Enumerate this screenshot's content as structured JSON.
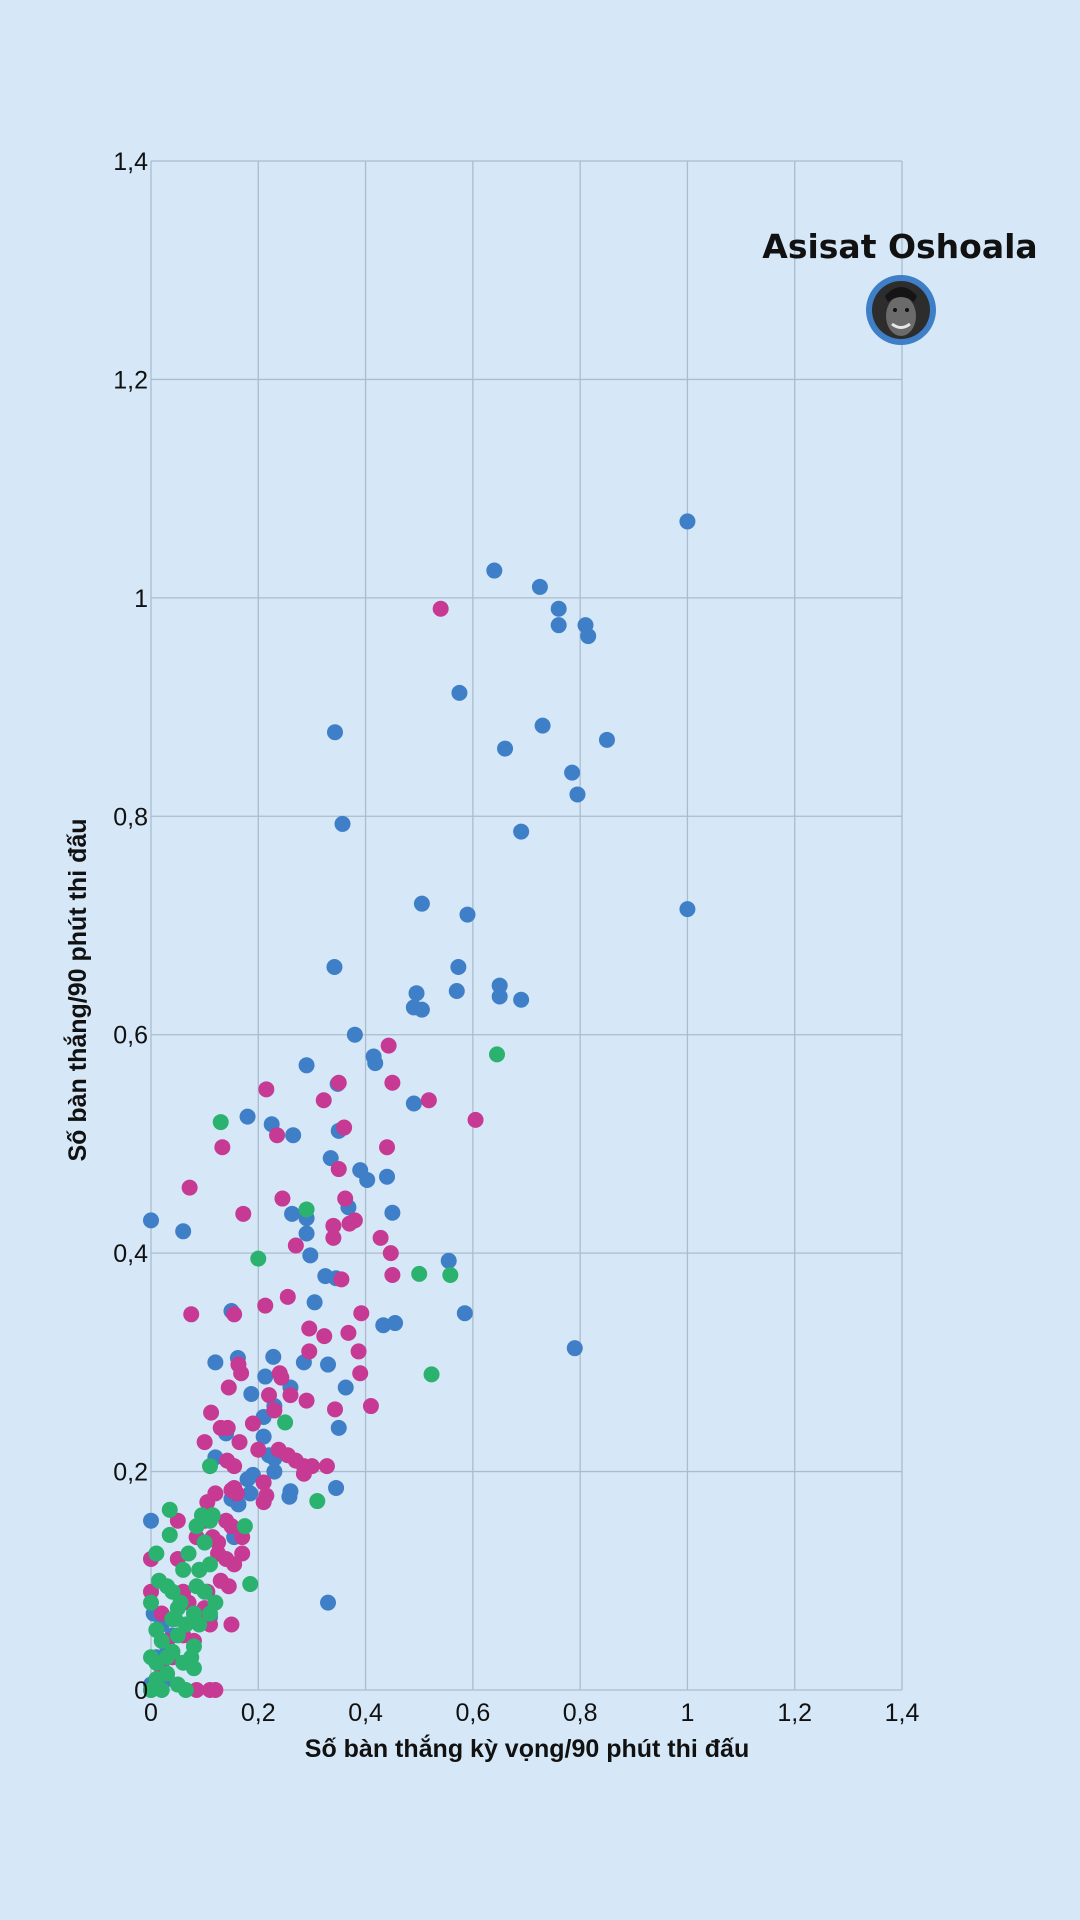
{
  "chart_data": {
    "type": "scatter",
    "xlabel": "Số bàn thắng kỳ vọng/90 phút thi đấu",
    "ylabel": "Số bàn thắng/90 phút thi đấu",
    "xlim": [
      0,
      1.4
    ],
    "ylim": [
      0,
      1.4
    ],
    "x_ticks": [
      0,
      0.2,
      0.4,
      0.6,
      0.8,
      1,
      1.2,
      1.4
    ],
    "y_ticks": [
      0,
      0.2,
      0.4,
      0.6,
      0.8,
      1,
      1.2,
      1.4
    ],
    "x_tick_labels": [
      "0",
      "0,2",
      "0,4",
      "0,6",
      "0,8",
      "1",
      "1,2",
      "1,4"
    ],
    "y_tick_labels": [
      "0",
      "0,2",
      "0,4",
      "0,6",
      "0,8",
      "1",
      "1,2",
      "1,4"
    ],
    "grid": true,
    "legend": "none",
    "annotation": {
      "label": "Asisat Oshoala",
      "x": 1.4,
      "y": 1.26,
      "marker": "player-photo"
    },
    "series": [
      {
        "color": "#3f7fc7",
        "points": [
          [
            1.0,
            1.07
          ],
          [
            0.64,
            1.025
          ],
          [
            0.725,
            1.01
          ],
          [
            0.76,
            0.99
          ],
          [
            0.76,
            0.975
          ],
          [
            0.81,
            0.975
          ],
          [
            0.815,
            0.965
          ],
          [
            0.575,
            0.913
          ],
          [
            0.73,
            0.883
          ],
          [
            0.343,
            0.877
          ],
          [
            0.66,
            0.862
          ],
          [
            0.85,
            0.87
          ],
          [
            0.785,
            0.84
          ],
          [
            0.795,
            0.82
          ],
          [
            0.357,
            0.793
          ],
          [
            0.69,
            0.786
          ],
          [
            0.505,
            0.72
          ],
          [
            0.59,
            0.71
          ],
          [
            1.0,
            0.715
          ],
          [
            0.342,
            0.662
          ],
          [
            0.573,
            0.662
          ],
          [
            0.65,
            0.645
          ],
          [
            0.495,
            0.638
          ],
          [
            0.57,
            0.64
          ],
          [
            0.65,
            0.635
          ],
          [
            0.69,
            0.632
          ],
          [
            0.49,
            0.625
          ],
          [
            0.505,
            0.623
          ],
          [
            0.38,
            0.6
          ],
          [
            0.415,
            0.58
          ],
          [
            0.418,
            0.574
          ],
          [
            0.29,
            0.572
          ],
          [
            0.348,
            0.555
          ],
          [
            0.49,
            0.537
          ],
          [
            0.18,
            0.525
          ],
          [
            0.225,
            0.518
          ],
          [
            0.35,
            0.512
          ],
          [
            0.265,
            0.508
          ],
          [
            0.335,
            0.487
          ],
          [
            0.39,
            0.476
          ],
          [
            0.368,
            0.442
          ],
          [
            0.403,
            0.467
          ],
          [
            0.44,
            0.47
          ],
          [
            0.263,
            0.436
          ],
          [
            0.29,
            0.432
          ],
          [
            0.45,
            0.437
          ],
          [
            0.0,
            0.43
          ],
          [
            0.06,
            0.42
          ],
          [
            0.29,
            0.418
          ],
          [
            0.297,
            0.398
          ],
          [
            0.555,
            0.393
          ],
          [
            0.325,
            0.379
          ],
          [
            0.345,
            0.377
          ],
          [
            0.305,
            0.355
          ],
          [
            0.15,
            0.347
          ],
          [
            0.585,
            0.345
          ],
          [
            0.455,
            0.336
          ],
          [
            0.433,
            0.334
          ],
          [
            0.79,
            0.313
          ],
          [
            0.228,
            0.305
          ],
          [
            0.162,
            0.304
          ],
          [
            0.12,
            0.3
          ],
          [
            0.33,
            0.298
          ],
          [
            0.285,
            0.3
          ],
          [
            0.213,
            0.287
          ],
          [
            0.363,
            0.277
          ],
          [
            0.26,
            0.277
          ],
          [
            0.187,
            0.271
          ],
          [
            0.23,
            0.26
          ],
          [
            0.21,
            0.25
          ],
          [
            0.35,
            0.24
          ],
          [
            0.14,
            0.235
          ],
          [
            0.21,
            0.232
          ],
          [
            0.12,
            0.213
          ],
          [
            0.23,
            0.212
          ],
          [
            0.22,
            0.215
          ],
          [
            0.23,
            0.2
          ],
          [
            0.19,
            0.197
          ],
          [
            0.18,
            0.193
          ],
          [
            0.26,
            0.182
          ],
          [
            0.345,
            0.185
          ],
          [
            0.185,
            0.18
          ],
          [
            0.258,
            0.177
          ],
          [
            0.15,
            0.175
          ],
          [
            0.163,
            0.17
          ],
          [
            0.155,
            0.14
          ],
          [
            0.0,
            0.155
          ],
          [
            0.33,
            0.08
          ],
          [
            0.11,
            0.067
          ],
          [
            0.005,
            0.07
          ],
          [
            0.02,
            0.06
          ],
          [
            0.03,
            0.04
          ],
          [
            0.01,
            0.03
          ],
          [
            0.02,
            0.02
          ],
          [
            0.03,
            0.01
          ],
          [
            0.0,
            0.005
          ],
          [
            0.04,
            0.05
          ]
        ]
      },
      {
        "color": "#c63a93",
        "points": [
          [
            0.54,
            0.99
          ],
          [
            0.443,
            0.59
          ],
          [
            0.215,
            0.55
          ],
          [
            0.35,
            0.556
          ],
          [
            0.45,
            0.556
          ],
          [
            0.322,
            0.54
          ],
          [
            0.518,
            0.54
          ],
          [
            0.605,
            0.522
          ],
          [
            0.36,
            0.515
          ],
          [
            0.235,
            0.508
          ],
          [
            0.133,
            0.497
          ],
          [
            0.44,
            0.497
          ],
          [
            0.35,
            0.477
          ],
          [
            0.072,
            0.46
          ],
          [
            0.245,
            0.45
          ],
          [
            0.362,
            0.45
          ],
          [
            0.172,
            0.436
          ],
          [
            0.37,
            0.427
          ],
          [
            0.38,
            0.43
          ],
          [
            0.34,
            0.425
          ],
          [
            0.428,
            0.414
          ],
          [
            0.34,
            0.414
          ],
          [
            0.27,
            0.407
          ],
          [
            0.447,
            0.4
          ],
          [
            0.45,
            0.38
          ],
          [
            0.355,
            0.376
          ],
          [
            0.255,
            0.36
          ],
          [
            0.213,
            0.352
          ],
          [
            0.392,
            0.345
          ],
          [
            0.075,
            0.344
          ],
          [
            0.155,
            0.344
          ],
          [
            0.295,
            0.331
          ],
          [
            0.368,
            0.327
          ],
          [
            0.323,
            0.324
          ],
          [
            0.295,
            0.31
          ],
          [
            0.387,
            0.31
          ],
          [
            0.163,
            0.298
          ],
          [
            0.168,
            0.29
          ],
          [
            0.24,
            0.29
          ],
          [
            0.39,
            0.29
          ],
          [
            0.243,
            0.286
          ],
          [
            0.145,
            0.277
          ],
          [
            0.22,
            0.27
          ],
          [
            0.26,
            0.27
          ],
          [
            0.29,
            0.265
          ],
          [
            0.41,
            0.26
          ],
          [
            0.343,
            0.257
          ],
          [
            0.23,
            0.256
          ],
          [
            0.112,
            0.254
          ],
          [
            0.19,
            0.244
          ],
          [
            0.13,
            0.24
          ],
          [
            0.143,
            0.24
          ],
          [
            0.1,
            0.227
          ],
          [
            0.165,
            0.227
          ],
          [
            0.2,
            0.22
          ],
          [
            0.238,
            0.22
          ],
          [
            0.255,
            0.215
          ],
          [
            0.142,
            0.21
          ],
          [
            0.155,
            0.205
          ],
          [
            0.27,
            0.21
          ],
          [
            0.285,
            0.205
          ],
          [
            0.3,
            0.205
          ],
          [
            0.328,
            0.205
          ],
          [
            0.285,
            0.198
          ],
          [
            0.21,
            0.19
          ],
          [
            0.215,
            0.178
          ],
          [
            0.21,
            0.172
          ],
          [
            0.155,
            0.185
          ],
          [
            0.105,
            0.172
          ],
          [
            0.12,
            0.18
          ],
          [
            0.15,
            0.183
          ],
          [
            0.16,
            0.18
          ],
          [
            0.14,
            0.155
          ],
          [
            0.1,
            0.155
          ],
          [
            0.15,
            0.15
          ],
          [
            0.05,
            0.155
          ],
          [
            0.085,
            0.14
          ],
          [
            0.17,
            0.14
          ],
          [
            0.115,
            0.14
          ],
          [
            0.125,
            0.135
          ],
          [
            0.125,
            0.125
          ],
          [
            0.14,
            0.12
          ],
          [
            0.17,
            0.125
          ],
          [
            0.155,
            0.115
          ],
          [
            0.0,
            0.12
          ],
          [
            0.05,
            0.12
          ],
          [
            0.09,
            0.11
          ],
          [
            0.13,
            0.1
          ],
          [
            0.145,
            0.095
          ],
          [
            0.105,
            0.09
          ],
          [
            0.0,
            0.09
          ],
          [
            0.06,
            0.09
          ],
          [
            0.07,
            0.08
          ],
          [
            0.1,
            0.075
          ],
          [
            0.02,
            0.07
          ],
          [
            0.09,
            0.07
          ],
          [
            0.11,
            0.06
          ],
          [
            0.15,
            0.06
          ],
          [
            0.06,
            0.05
          ],
          [
            0.03,
            0.045
          ],
          [
            0.08,
            0.045
          ],
          [
            0.04,
            0.03
          ],
          [
            0.02,
            0.02
          ],
          [
            0.085,
            0.0
          ],
          [
            0.11,
            0.0
          ],
          [
            0.12,
            0.0
          ],
          [
            0.0,
            0.0
          ]
        ]
      },
      {
        "color": "#2ab26e",
        "points": [
          [
            0.645,
            0.582
          ],
          [
            0.13,
            0.52
          ],
          [
            0.29,
            0.44
          ],
          [
            0.2,
            0.395
          ],
          [
            0.5,
            0.381
          ],
          [
            0.558,
            0.38
          ],
          [
            0.523,
            0.289
          ],
          [
            0.25,
            0.245
          ],
          [
            0.31,
            0.173
          ],
          [
            0.185,
            0.097
          ],
          [
            0.175,
            0.15
          ],
          [
            0.035,
            0.165
          ],
          [
            0.095,
            0.16
          ],
          [
            0.115,
            0.16
          ],
          [
            0.035,
            0.142
          ],
          [
            0.085,
            0.15
          ],
          [
            0.11,
            0.155
          ],
          [
            0.11,
            0.115
          ],
          [
            0.01,
            0.125
          ],
          [
            0.07,
            0.125
          ],
          [
            0.06,
            0.11
          ],
          [
            0.09,
            0.11
          ],
          [
            0.015,
            0.1
          ],
          [
            0.03,
            0.095
          ],
          [
            0.04,
            0.09
          ],
          [
            0.085,
            0.095
          ],
          [
            0.1,
            0.09
          ],
          [
            0.12,
            0.08
          ],
          [
            0.0,
            0.08
          ],
          [
            0.05,
            0.075
          ],
          [
            0.08,
            0.07
          ],
          [
            0.11,
            0.07
          ],
          [
            0.04,
            0.065
          ],
          [
            0.065,
            0.06
          ],
          [
            0.09,
            0.06
          ],
          [
            0.01,
            0.055
          ],
          [
            0.05,
            0.05
          ],
          [
            0.02,
            0.045
          ],
          [
            0.08,
            0.04
          ],
          [
            0.0,
            0.03
          ],
          [
            0.04,
            0.035
          ],
          [
            0.075,
            0.03
          ],
          [
            0.01,
            0.025
          ],
          [
            0.06,
            0.025
          ],
          [
            0.08,
            0.02
          ],
          [
            0.03,
            0.015
          ],
          [
            0.01,
            0.01
          ],
          [
            0.05,
            0.005
          ],
          [
            0.0,
            0.0
          ],
          [
            0.02,
            0.0
          ],
          [
            0.065,
            0.0
          ],
          [
            0.11,
            0.205
          ],
          [
            0.045,
            0.065
          ],
          [
            0.03,
            0.03
          ],
          [
            0.055,
            0.08
          ],
          [
            0.1,
            0.135
          ]
        ]
      }
    ]
  }
}
